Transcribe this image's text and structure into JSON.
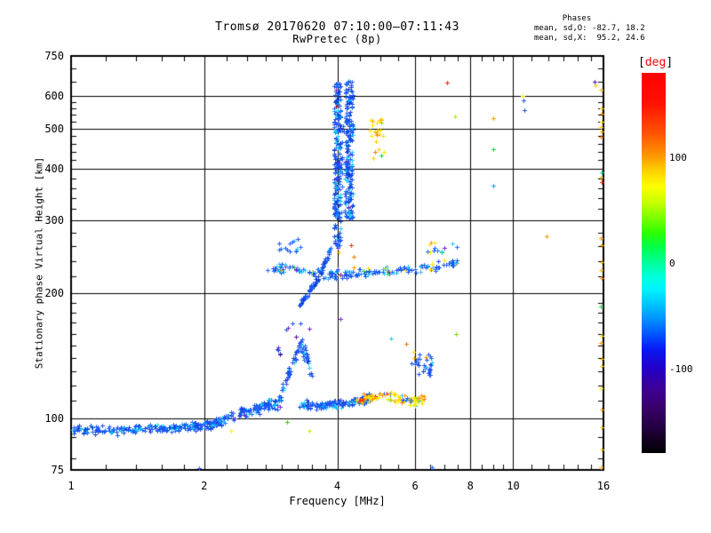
{
  "header": {
    "title": "Tromsø 20170620 07:10:00–07:11:43",
    "subtitle": "RwPretec (8p)"
  },
  "stats": {
    "heading": "Phases",
    "line_o": "mean, sd,O: -82.7, 18.2",
    "line_x": "mean, sd,X:  95.2, 24.6"
  },
  "axes": {
    "x_label": "Frequency [MHz]",
    "y_label": "Stationary phase Virtual Height [km]",
    "x_scale": "log",
    "y_scale": "log",
    "x_range": [
      1,
      16
    ],
    "y_range": [
      75,
      750
    ],
    "x_major_ticks": [
      1,
      2,
      4,
      6,
      8,
      10,
      16
    ],
    "x_minor_ticks": [
      1.2,
      1.4,
      1.6,
      1.8,
      2.25,
      2.5,
      2.75,
      3,
      3.25,
      3.5,
      3.75,
      4.5,
      5,
      5.5,
      6.5,
      7,
      7.5,
      8.5,
      9,
      9.5,
      11,
      12,
      13,
      14,
      15
    ],
    "y_major_ticks": [
      75,
      100,
      200,
      300,
      400,
      500,
      600,
      750
    ],
    "y_minor_ticks": [
      80,
      90,
      110,
      120,
      130,
      140,
      150,
      160,
      170,
      180,
      190,
      220,
      240,
      260,
      280,
      320,
      340,
      360,
      380,
      420,
      440,
      460,
      480,
      520,
      540,
      560,
      580,
      650,
      700
    ],
    "x_gridlines": [
      2,
      4,
      6,
      8,
      10
    ],
    "y_gridlines": [
      100,
      200,
      300,
      400,
      500,
      600
    ]
  },
  "colorbar": {
    "title_bracket_open": "[",
    "title_text": "deg",
    "title_bracket_close": "]",
    "title_color": "#ff0000",
    "range": [
      -180,
      180
    ],
    "ticks": [
      {
        "value": 100,
        "label": "100"
      },
      {
        "value": 0,
        "label": "0"
      },
      {
        "value": -100,
        "label": "-100"
      }
    ],
    "gradient": [
      [
        "#ff0000",
        0
      ],
      [
        "#ff1100",
        8
      ],
      [
        "#ff5500",
        16
      ],
      [
        "#ff9900",
        22
      ],
      [
        "#ffd500",
        26
      ],
      [
        "#fbff00",
        30
      ],
      [
        "#c8ff00",
        34
      ],
      [
        "#7dff00",
        38
      ],
      [
        "#2fff00",
        42
      ],
      [
        "#00ff4c",
        46
      ],
      [
        "#00ff9d",
        50
      ],
      [
        "#00ffe1",
        54
      ],
      [
        "#00f2ff",
        57
      ],
      [
        "#00c3ff",
        61
      ],
      [
        "#008fff",
        65
      ],
      [
        "#0051ff",
        69
      ],
      [
        "#0916f2",
        73
      ],
      [
        "#2400c4",
        78
      ],
      [
        "#3c0096",
        83
      ],
      [
        "#3a006b",
        88
      ],
      [
        "#250043",
        93
      ],
      [
        "#000000",
        100
      ]
    ]
  },
  "chart_data": {
    "type": "scatter",
    "marker": "plus",
    "x_units": "MHz",
    "y_units": "km",
    "color_units": "deg phase",
    "clusters": [
      {
        "name": "e-band",
        "type": "path",
        "path": [
          [
            1.0,
            94
          ],
          [
            1.25,
            93.5
          ],
          [
            1.5,
            94.5
          ],
          [
            1.78,
            95.5
          ],
          [
            2.05,
            96.5
          ],
          [
            2.18,
            98
          ]
        ],
        "h_spread": 3.2,
        "f_jitter": 0.015,
        "n": 240,
        "colors": [
          [
            "#1a55ee",
            5
          ],
          [
            "#2266ff",
            3
          ],
          [
            "#0f3fd0",
            2
          ],
          [
            "#22ccff",
            1.6
          ],
          [
            "#00b4ff",
            1.2
          ]
        ]
      },
      {
        "name": "e-rise",
        "type": "path",
        "path": [
          [
            2.18,
            99
          ],
          [
            2.45,
            104
          ],
          [
            2.72,
            107
          ],
          [
            2.98,
            110
          ]
        ],
        "h_spread": 5,
        "f_jitter": 0.012,
        "n": 115,
        "colors": [
          [
            "#1a55ee",
            4
          ],
          [
            "#2266ff",
            2.5
          ],
          [
            "#0f3fd0",
            1.5
          ],
          [
            "#22ccff",
            1.4
          ],
          [
            "#00b4ff",
            0.8
          ],
          [
            "#7722cc",
            0.2
          ]
        ]
      },
      {
        "name": "e-bump",
        "type": "path",
        "path": [
          [
            3.0,
            118
          ],
          [
            3.1,
            127
          ],
          [
            3.2,
            139
          ],
          [
            3.3,
            150
          ],
          [
            3.4,
            144
          ],
          [
            3.48,
            128
          ]
        ],
        "h_spread": 8,
        "f_jitter": 0.008,
        "n": 70,
        "colors": [
          [
            "#1a55ee",
            4
          ],
          [
            "#2266ff",
            2
          ],
          [
            "#0f3fd0",
            1.5
          ],
          [
            "#22ccff",
            0.8
          ],
          [
            "#7722cc",
            0.5
          ],
          [
            "#44cc44",
            0.15
          ]
        ]
      },
      {
        "name": "e-flat",
        "type": "path",
        "path": [
          [
            3.28,
            109
          ],
          [
            3.6,
            107
          ],
          [
            3.92,
            108
          ],
          [
            4.25,
            109
          ],
          [
            4.55,
            111
          ],
          [
            4.75,
            112
          ]
        ],
        "h_spread": 3.5,
        "f_jitter": 0.008,
        "n": 170,
        "colors": [
          [
            "#1a55ee",
            5
          ],
          [
            "#2266ff",
            3
          ],
          [
            "#0f3fd0",
            2
          ],
          [
            "#22ccff",
            1.2
          ],
          [
            "#00b4ff",
            0.8
          ]
        ]
      },
      {
        "name": "es-colored",
        "type": "path",
        "path": [
          [
            4.4,
            110
          ],
          [
            4.75,
            112
          ],
          [
            5.1,
            114
          ],
          [
            5.5,
            112
          ],
          [
            5.9,
            110
          ],
          [
            6.3,
            112
          ]
        ],
        "h_spread": 4.5,
        "f_jitter": 0.008,
        "n": 90,
        "colors": [
          [
            "#ffe800",
            4
          ],
          [
            "#ffd000",
            2
          ],
          [
            "#ff9900",
            2
          ],
          [
            "#ff7700",
            1
          ],
          [
            "#ff2200",
            0.5
          ],
          [
            "#88dd00",
            0.5
          ],
          [
            "#22ccff",
            0.4
          ],
          [
            "#2266ff",
            0.7
          ]
        ]
      },
      {
        "name": "blob-6mhz",
        "type": "band",
        "f": [
          5.85,
          6.55
        ],
        "h": [
          127,
          143
        ],
        "n": 32,
        "colors": [
          [
            "#1a55ee",
            4
          ],
          [
            "#0f3fd0",
            2
          ],
          [
            "#2266ff",
            2
          ],
          [
            "#22ccff",
            0.7
          ],
          [
            "#ff9900",
            0.3
          ]
        ]
      },
      {
        "name": "f-band",
        "type": "path",
        "path": [
          [
            2.78,
            228
          ],
          [
            3.1,
            231
          ],
          [
            3.5,
            226
          ],
          [
            3.9,
            222
          ],
          [
            4.3,
            223
          ],
          [
            4.8,
            225
          ],
          [
            5.3,
            227
          ],
          [
            5.9,
            229
          ],
          [
            6.5,
            233
          ],
          [
            7.1,
            237
          ],
          [
            7.55,
            239
          ]
        ],
        "h_spread": 9,
        "f_jitter": 0.012,
        "n": 185,
        "colors": [
          [
            "#1a55ee",
            4.5
          ],
          [
            "#2266ff",
            2
          ],
          [
            "#22ccff",
            1.2
          ],
          [
            "#00b4ff",
            0.8
          ],
          [
            "#55aaff",
            0.5
          ],
          [
            "#ffe800",
            0.45
          ],
          [
            "#ff9900",
            0.35
          ],
          [
            "#7722cc",
            0.3
          ],
          [
            "#22cc44",
            0.15
          ],
          [
            "#ff2200",
            0.1
          ]
        ]
      },
      {
        "name": "f-band-upper",
        "type": "band",
        "f": [
          2.95,
          3.3
        ],
        "h": [
          248,
          272
        ],
        "n": 14,
        "colors": [
          [
            "#1a55ee",
            3
          ],
          [
            "#2266ff",
            2
          ],
          [
            "#22ccff",
            0.5
          ]
        ]
      },
      {
        "name": "cusp",
        "type": "path",
        "path": [
          [
            3.28,
            188
          ],
          [
            3.38,
            196
          ],
          [
            3.5,
            206
          ],
          [
            3.62,
            218
          ],
          [
            3.74,
            236
          ],
          [
            3.86,
            258
          ]
        ],
        "h_spread": 5,
        "f_jitter": 0.006,
        "n": 85,
        "colors": [
          [
            "#0f3fd0",
            3
          ],
          [
            "#1a55ee",
            4
          ],
          [
            "#2266ff",
            2
          ],
          [
            "#22ccff",
            0.5
          ]
        ]
      },
      {
        "name": "spike-left",
        "type": "vline",
        "f": [
          3.93,
          4.07
        ],
        "h": [
          258,
          648
        ],
        "n": 210,
        "colors": [
          [
            "#1a55ee",
            4
          ],
          [
            "#0f3fd0",
            2.5
          ],
          [
            "#2266ff",
            2.5
          ],
          [
            "#22ccff",
            0.9
          ],
          [
            "#00b4ff",
            0.6
          ],
          [
            "#7722cc",
            0.25
          ],
          [
            "#aa1100",
            0.1
          ]
        ]
      },
      {
        "name": "spike-right",
        "type": "vline",
        "f": [
          4.17,
          4.34
        ],
        "h": [
          302,
          662
        ],
        "n": 200,
        "colors": [
          [
            "#1a55ee",
            4
          ],
          [
            "#0f3fd0",
            2.5
          ],
          [
            "#2266ff",
            2.5
          ],
          [
            "#22ccff",
            0.9
          ],
          [
            "#00b4ff",
            0.5
          ],
          [
            "#7722cc",
            0.2
          ]
        ]
      },
      {
        "name": "spike-mid",
        "type": "vline",
        "f": [
          4.06,
          4.17
        ],
        "h": [
          310,
          580
        ],
        "n": 20,
        "colors": [
          [
            "#1a55ee",
            3
          ],
          [
            "#2266ff",
            2
          ],
          [
            "#22ccff",
            0.5
          ]
        ]
      },
      {
        "name": "yellow-high",
        "type": "band",
        "f": [
          4.7,
          5.12
        ],
        "h": [
          425,
          545
        ],
        "n": 24,
        "colors": [
          [
            "#ffe800",
            4
          ],
          [
            "#ffd000",
            1.5
          ],
          [
            "#ff9900",
            1.2
          ],
          [
            "#88dd00",
            0.6
          ],
          [
            "#22cc44",
            0.4
          ],
          [
            "#ff7700",
            0.4
          ]
        ]
      },
      {
        "name": "sub-bump-sparse",
        "type": "band",
        "f": [
          2.85,
          3.5
        ],
        "h": [
          140,
          176
        ],
        "n": 10,
        "colors": [
          [
            "#1a55ee",
            2
          ],
          [
            "#7722cc",
            1
          ],
          [
            "#551199",
            0.7
          ],
          [
            "#22ccff",
            0.4
          ]
        ]
      },
      {
        "name": "f-tail",
        "type": "band",
        "f": [
          6.4,
          7.5
        ],
        "h": [
          240,
          266
        ],
        "n": 14,
        "colors": [
          [
            "#2266ff",
            2
          ],
          [
            "#22ccff",
            1.2
          ],
          [
            "#ffe800",
            1
          ],
          [
            "#ff9900",
            0.6
          ],
          [
            "#22cc44",
            0.3
          ],
          [
            "#7722cc",
            0.3
          ]
        ]
      }
    ],
    "points": [
      [
        7.08,
        648,
        "#ff2200"
      ],
      [
        7.4,
        537,
        "#aaee00"
      ],
      [
        9.0,
        530,
        "#ff9900"
      ],
      [
        9.0,
        447,
        "#22cc44"
      ],
      [
        9.0,
        365,
        "#2299ee"
      ],
      [
        10.5,
        600,
        "#ffe800"
      ],
      [
        10.55,
        585,
        "#2255dd"
      ],
      [
        10.6,
        556,
        "#2255dd"
      ],
      [
        11.9,
        275,
        "#ff9900"
      ],
      [
        7.42,
        160,
        "#88dd00"
      ],
      [
        5.95,
        145,
        "#ffe800"
      ],
      [
        5.98,
        140,
        "#ff9900"
      ],
      [
        5.72,
        151,
        "#ff7700"
      ],
      [
        5.3,
        156,
        "#22ccff"
      ],
      [
        4.06,
        174,
        "#7722cc"
      ],
      [
        3.1,
        165,
        "#7722cc"
      ],
      [
        2.92,
        147,
        "#3344dd"
      ],
      [
        2.3,
        93,
        "#ffee00"
      ],
      [
        3.08,
        98,
        "#44cc00"
      ],
      [
        3.45,
        93,
        "#ccee00"
      ],
      [
        1.95,
        75.5,
        "#2266ff"
      ],
      [
        6.55,
        76,
        "#2266ff"
      ],
      [
        4.35,
        246,
        "#ff7700"
      ],
      [
        4.02,
        252,
        "#ffcc00"
      ],
      [
        4.3,
        262,
        "#ff3300"
      ],
      [
        15.3,
        650,
        "#5511bb"
      ],
      [
        15.35,
        638,
        "#ffcc00"
      ],
      [
        15.8,
        622,
        "#ffcc00"
      ],
      [
        15.85,
        560,
        "#ffd000"
      ],
      [
        15.85,
        545,
        "#ff9900"
      ],
      [
        15.9,
        520,
        "#ffe800"
      ],
      [
        15.8,
        505,
        "#ffcc00"
      ],
      [
        15.85,
        492,
        "#ffaa00"
      ],
      [
        15.8,
        478,
        "#ff8800"
      ],
      [
        15.85,
        392,
        "#00dd88"
      ],
      [
        15.8,
        382,
        "#ffaa00"
      ],
      [
        15.9,
        372,
        "#ff2200"
      ],
      [
        15.8,
        272,
        "#ff9900"
      ],
      [
        15.85,
        262,
        "#ffaa00"
      ],
      [
        15.9,
        238,
        "#ffcc00"
      ],
      [
        15.8,
        228,
        "#ffbb00"
      ],
      [
        15.85,
        218,
        "#ff8800"
      ],
      [
        15.8,
        186,
        "#22cc44"
      ],
      [
        15.85,
        158,
        "#ffdd00"
      ],
      [
        15.8,
        152,
        "#ff9900"
      ],
      [
        15.85,
        139,
        "#ffcc00"
      ],
      [
        15.9,
        134,
        "#ffcc00"
      ],
      [
        15.8,
        118,
        "#ffee00"
      ],
      [
        15.85,
        105,
        "#ffaa00"
      ],
      [
        15.9,
        95,
        "#ffcc00"
      ],
      [
        15.85,
        84,
        "#ffdd00"
      ],
      [
        15.8,
        76,
        "#ffcc00"
      ]
    ]
  }
}
